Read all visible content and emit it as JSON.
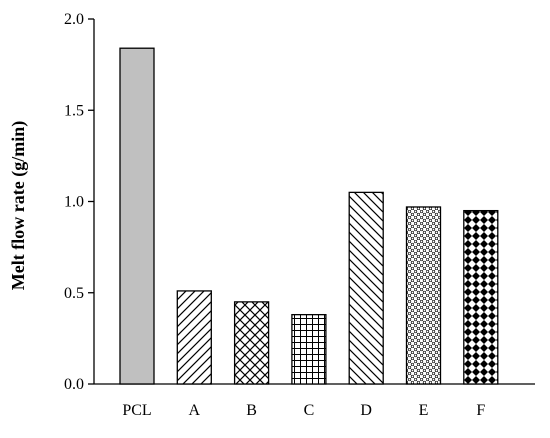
{
  "chart_data": {
    "type": "bar",
    "title": "",
    "xlabel": "",
    "ylabel": "Melt flow rate (g/min)",
    "categories": [
      "PCL",
      "A",
      "B",
      "C",
      "D",
      "E",
      "F"
    ],
    "values": [
      1.84,
      0.51,
      0.45,
      0.38,
      1.05,
      0.97,
      0.95
    ],
    "ylim": [
      0,
      2.0
    ],
    "yticks": [
      "0.0",
      "0.5",
      "1.0",
      "1.5",
      "2.0"
    ],
    "grid": false,
    "legend": "none",
    "bar_fills": [
      "solid-gray",
      "diagonal-forward",
      "cross-hatch",
      "grid",
      "diagonal-backward",
      "stipple",
      "checker-diamond"
    ],
    "colors": {
      "solid_gray": "#c0c0c0",
      "ink": "#000000",
      "background": "#ffffff"
    }
  }
}
